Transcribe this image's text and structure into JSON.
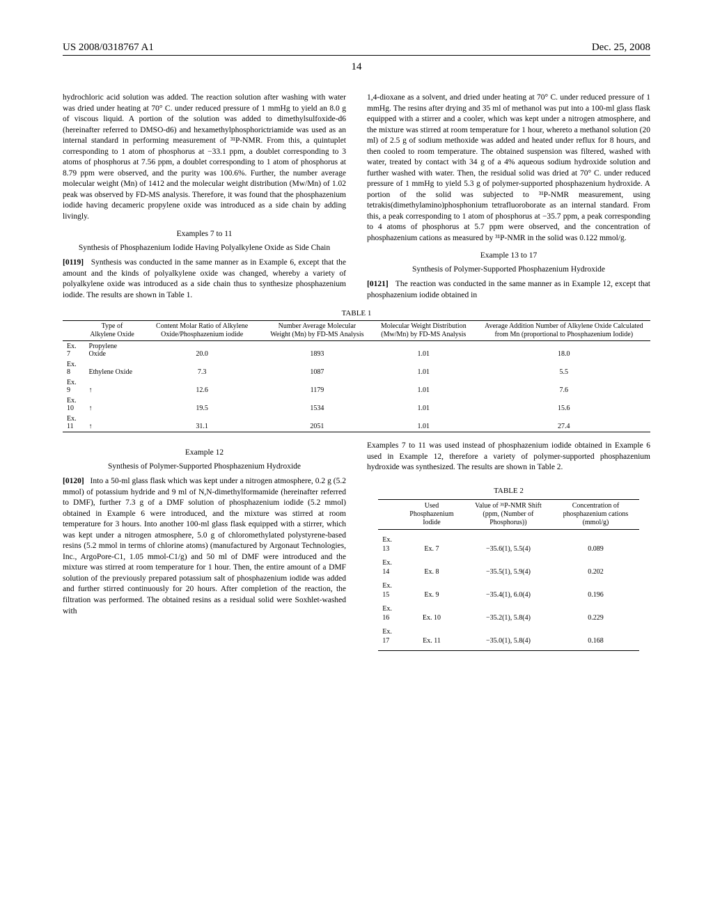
{
  "header": {
    "patent_number": "US 2008/0318767 A1",
    "date": "Dec. 25, 2008",
    "page_number": "14"
  },
  "left_col": {
    "para1": "hydrochloric acid solution was added. The reaction solution after washing with water was dried under heating at 70° C. under reduced pressure of 1 mmHg to yield an 8.0 g of viscous liquid. A portion of the solution was added to dimethylsulfoxide-d6 (hereinafter referred to DMSO-d6) and hexamethylphosphorictriamide was used as an internal standard in performing measurement of ³¹P-NMR. From this, a quintuplet corresponding to 1 atom of phosphorus at −33.1 ppm, a doublet corresponding to 3 atoms of phosphorus at 7.56 ppm, a doublet corresponding to 1 atom of phosphorus at 8.79 ppm were observed, and the purity was 100.6%. Further, the number average molecular weight (Mn) of 1412 and the molecular weight distribution (Mw/Mn) of 1.02 peak was observed by FD-MS analysis. Therefore, it was found that the phosphazenium iodide having decameric propylene oxide was introduced as a side chain by adding livingly.",
    "heading_ex7_11": "Examples 7 to 11",
    "subheading_ex7_11": "Synthesis of Phosphazenium Iodide Having Polyalkylene Oxide as Side Chain",
    "para_0119_num": "[0119]",
    "para_0119": "Synthesis was conducted in the same manner as in Example 6, except that the amount and the kinds of polyalkylene oxide was changed, whereby a variety of polyalkylene oxide was introduced as a side chain thus to synthesize phosphazenium iodide. The results are shown in Table 1."
  },
  "right_col": {
    "para1": "1,4-dioxane as a solvent, and dried under heating at 70° C. under reduced pressure of 1 mmHg. The resins after drying and 35 ml of methanol was put into a 100-ml glass flask equipped with a stirrer and a cooler, which was kept under a nitrogen atmosphere, and the mixture was stirred at room temperature for 1 hour, whereto a methanol solution (20 ml) of 2.5 g of sodium methoxide was added and heated under reflux for 8 hours, and then cooled to room temperature. The obtained suspension was filtered, washed with water, treated by contact with 34 g of a 4% aqueous sodium hydroxide solution and further washed with water. Then, the residual solid was dried at 70° C. under reduced pressure of 1 mmHg to yield 5.3 g of polymer-supported phosphazenium hydroxide. A portion of the solid was subjected to ³¹P-NMR measurement, using tetrakis(dimethylamino)phosphonium tetrafluoroborate as an internal standard. From this, a peak corresponding to 1 atom of phosphorus at −35.7 ppm, a peak corresponding to 4 atoms of phosphorus at 5.7 ppm were observed, and the concentration of phosphazenium cations as measured by ³¹P-NMR in the solid was 0.122 mmol/g.",
    "heading_ex13_17": "Example 13 to 17",
    "subheading_ex13_17": "Synthesis of Polymer-Supported Phosphazenium Hydroxide",
    "para_0121_num": "[0121]",
    "para_0121": "The reaction was conducted in the same manner as in Example 12, except that phosphazenium iodide obtained in"
  },
  "table1": {
    "caption": "TABLE 1",
    "headers": [
      "",
      "Type of Alkylene Oxide",
      "Content Molar Ratio of Alkylene Oxide/Phosphazenium iodide",
      "Number Average Molecular Weight (Mn) by FD-MS Analysis",
      "Molecular Weight Distribution (Mw/Mn) by FD-MS Analysis",
      "Average Addition Number of Alkylene Oxide Calculated from Mn (proportional to Phosphazenium Iodide)"
    ],
    "rows": [
      [
        "Ex. 7",
        "Propylene Oxide",
        "20.0",
        "1893",
        "1.01",
        "18.0"
      ],
      [
        "Ex. 8",
        "Ethylene Oxide",
        "7.3",
        "1087",
        "1.01",
        "5.5"
      ],
      [
        "Ex. 9",
        "↑",
        "12.6",
        "1179",
        "1.01",
        "7.6"
      ],
      [
        "Ex. 10",
        "↑",
        "19.5",
        "1534",
        "1.01",
        "15.6"
      ],
      [
        "Ex. 11",
        "↑",
        "31.1",
        "2051",
        "1.01",
        "27.4"
      ]
    ]
  },
  "lower_left": {
    "heading_ex12": "Example 12",
    "subheading_ex12": "Synthesis of Polymer-Supported Phosphazenium Hydroxide",
    "para_0120_num": "[0120]",
    "para_0120": "Into a 50-ml glass flask which was kept under a nitrogen atmosphere, 0.2 g (5.2 mmol) of potassium hydride and 9 ml of N,N-dimethylformamide (hereinafter referred to DMF), further 7.3 g of a DMF solution of phosphazenium iodide (5.2 mmol) obtained in Example 6 were introduced, and the mixture was stirred at room temperature for 3 hours. Into another 100-ml glass flask equipped with a stirrer, which was kept under a nitrogen atmosphere, 5.0 g of chloromethylated polystyrene-based resins (5.2 mmol in terms of chlorine atoms) (manufactured by Argonaut Technologies, Inc., ArgoPore-C1, 1.05 mmol-C1/g) and 50 ml of DMF were introduced and the mixture was stirred at room temperature for 1 hour. Then, the entire amount of a DMF solution of the previously prepared potassium salt of phosphazenium iodide was added and further stirred continuously for 20 hours. After completion of the reaction, the filtration was performed. The obtained resins as a residual solid were Soxhlet-washed with"
  },
  "lower_right": {
    "para": "Examples 7 to 11 was used instead of phosphazenium iodide obtained in Example 6 used in Example 12, therefore a variety of polymer-supported phosphazenium hydroxide was synthesized. The results are shown in Table 2."
  },
  "table2": {
    "caption": "TABLE 2",
    "headers": [
      "",
      "Used Phosphazenium Iodide",
      "Value of ³¹P-NMR Shift (ppm, (Number of Phosphorus))",
      "Concentration of phosphazenium cations (mmol/g)"
    ],
    "rows": [
      [
        "Ex. 13",
        "Ex. 7",
        "−35.6(1), 5.5(4)",
        "0.089"
      ],
      [
        "Ex. 14",
        "Ex. 8",
        "−35.5(1), 5.9(4)",
        "0.202"
      ],
      [
        "Ex. 15",
        "Ex. 9",
        "−35.4(1), 6.0(4)",
        "0.196"
      ],
      [
        "Ex. 16",
        "Ex. 10",
        "−35.2(1), 5.8(4)",
        "0.229"
      ],
      [
        "Ex. 17",
        "Ex. 11",
        "−35.0(1), 5.8(4)",
        "0.168"
      ]
    ]
  }
}
